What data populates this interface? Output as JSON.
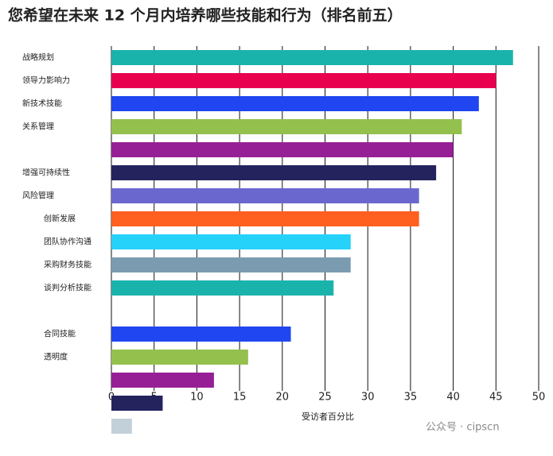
{
  "chart_data": {
    "type": "barh",
    "title": "您希望在未来 12 个月内培养哪些技能和行为（排名前五）",
    "categories": [
      "战略规划",
      "领导力影响力",
      "新技术技能",
      "关系管理",
      null,
      "增强可持续性",
      "风险管理",
      "创新发展",
      "团队协作沟通",
      "采购财务技能",
      "谈判分析技能",
      null,
      "合同技能",
      "透明度",
      null,
      null,
      null
    ],
    "values": [
      47,
      45,
      43,
      41,
      40,
      38,
      36,
      36,
      28,
      28,
      26,
      null,
      21,
      16,
      12,
      6,
      2.4
    ],
    "colors": [
      "#1ab3ac",
      "#e8004f",
      "#1f46f0",
      "#94c04e",
      "#971f96",
      "#24235e",
      "#6a68cf",
      "#ff5f1f",
      "#25d2fa",
      "#7b9cb0",
      "#1ab3ac",
      null,
      "#1f46f0",
      "#94c04e",
      "#971f96",
      "#24235e",
      "#c2d0da"
    ],
    "xlim": [
      0,
      50
    ],
    "xticks": [
      0,
      5,
      10,
      15,
      20,
      25,
      30,
      35,
      40,
      45,
      50
    ],
    "xlabel": "受访者百分比",
    "grid": true,
    "watermark": "公众号 · cipscn"
  }
}
